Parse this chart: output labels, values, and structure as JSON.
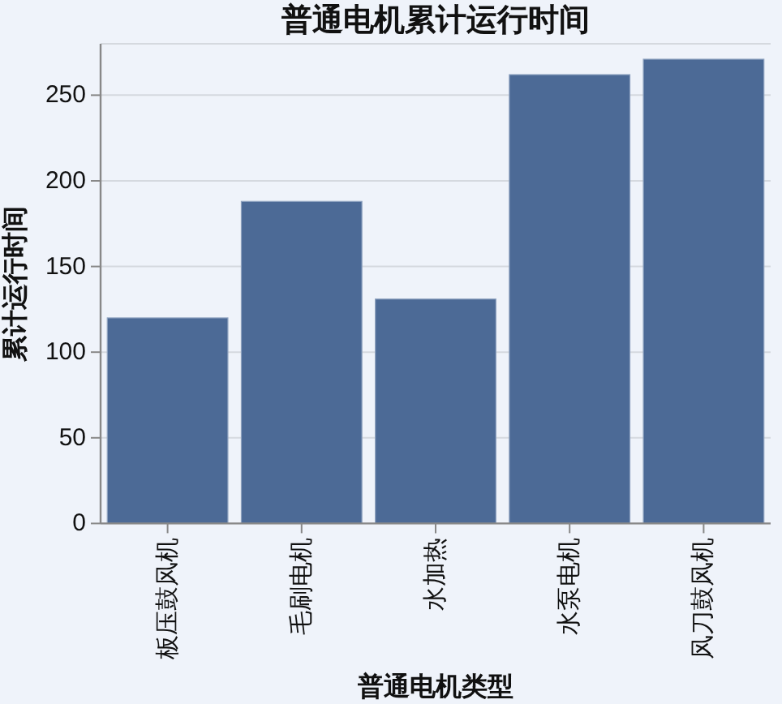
{
  "chart_data": {
    "type": "bar",
    "title": "普通电机累计运行时间",
    "xlabel": "普通电机类型",
    "ylabel": "累计运行时间",
    "categories": [
      "板压鼓风机",
      "毛刷电机",
      "水加热",
      "水泵电机",
      "风刀鼓风机"
    ],
    "values": [
      120,
      188,
      131,
      262,
      271
    ],
    "color": "#4c6a96",
    "ylim": [
      0,
      280
    ],
    "yticks": [
      0,
      50,
      100,
      150,
      200,
      250,
      {
        "value": 280,
        "label": null
      }
    ],
    "grid": "y"
  }
}
